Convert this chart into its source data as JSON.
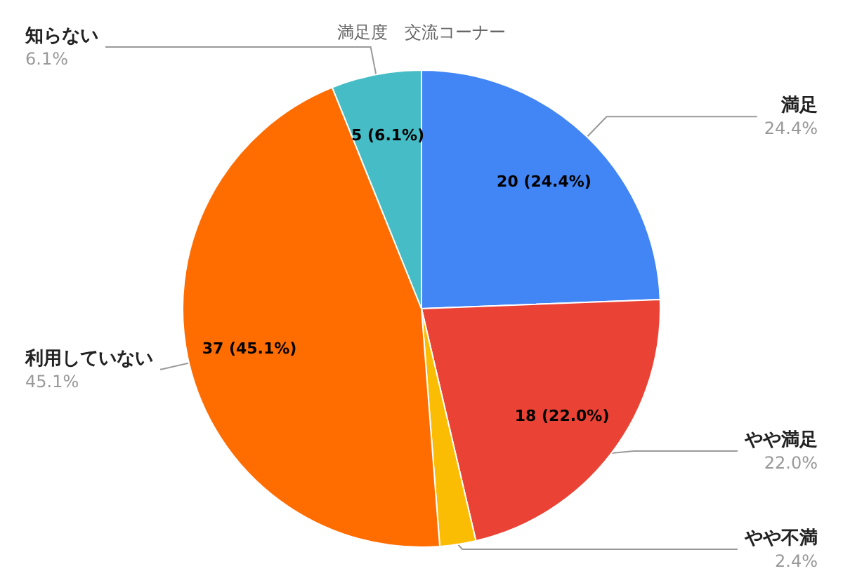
{
  "chart_data": {
    "type": "pie",
    "title": "満足度　交流コーナー",
    "categories": [
      "満足",
      "やや満足",
      "やや不満",
      "利用していない",
      "知らない"
    ],
    "values": [
      20,
      18,
      2,
      37,
      5
    ],
    "colors": [
      "#4285f4",
      "#ea4335",
      "#fbbc04",
      "#ff6d01",
      "#46bdc6"
    ],
    "value_labels": [
      "20 (24.4%)",
      "18 (22.0%)",
      null,
      "37 (45.1%)",
      "5 (6.1%)"
    ],
    "annotations": [
      "24.4%",
      "22.0%",
      "2.4%",
      "45.1%",
      "6.1%"
    ],
    "legend": false
  }
}
